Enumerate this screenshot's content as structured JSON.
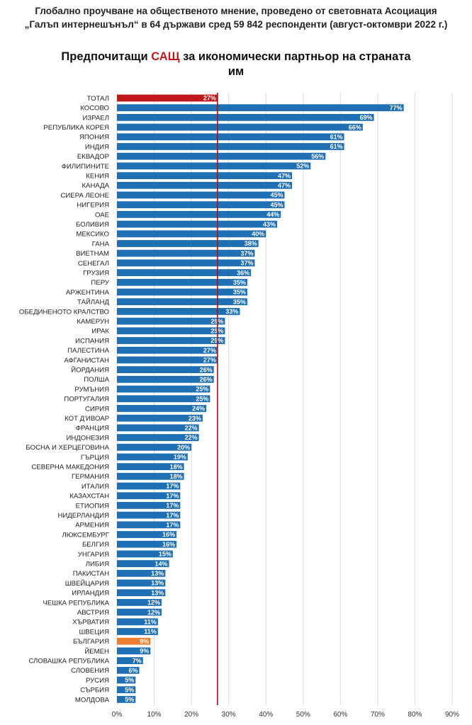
{
  "header": {
    "line1": "Глобално проучване на общественото мнение, проведено от световната Асоциация",
    "line2": "„Галъп интернешънъл“ в 64 държави сред 59 842 респонденти (август-октомври 2022 г.)"
  },
  "title": {
    "part1": "Предпочитащи ",
    "highlight": "САЩ",
    "part2": " за икономически партньор на страната",
    "line2": "им"
  },
  "colors": {
    "bar": "#1f6fb5",
    "total": "#c0181b",
    "highlight": "#ed7d31",
    "refline": "#a0141a",
    "grid": "#d9d9d9"
  },
  "chart_data": {
    "type": "bar",
    "orientation": "horizontal",
    "categories": [
      "ТОТАЛ",
      "КОСОВО",
      "ИЗРАЕЛ",
      "РЕПУБЛИКА КОРЕЯ",
      "ЯПОНИЯ",
      "ИНДИЯ",
      "ЕКВАДОР",
      "ФИЛИПИНИТЕ",
      "КЕНИЯ",
      "КАНАДА",
      "СИЕРА ЛЕОНЕ",
      "НИГЕРИЯ",
      "ОАЕ",
      "БОЛИВИЯ",
      "МЕКСИКО",
      "ГАНА",
      "ВИЕТНАМ",
      "СЕНЕГАЛ",
      "ГРУЗИЯ",
      "ПЕРУ",
      "АРЖЕНТИНА",
      "ТАЙЛАНД",
      "ОБЕДИНЕНОТО КРАЛСТВО",
      "КАМЕРУН",
      "ИРАК",
      "ИСПАНИЯ",
      "ПАЛЕСТИНА",
      "АФГАНИСТАН",
      "ЙОРДАНИЯ",
      "ПОЛША",
      "РУМЪНИЯ",
      "ПОРТУГАЛИЯ",
      "СИРИЯ",
      "КОТ Д'ИВОАР",
      "ФРАНЦИЯ",
      "ИНДОНЕЗИЯ",
      "БОСНА И ХЕРЦЕГОВИНА",
      "ГЪРЦИЯ",
      "СЕВЕРНА МАКЕДОНИЯ",
      "ГЕРМАНИЯ",
      "ИТАЛИЯ",
      "КАЗАХСТАН",
      "ЕТИОПИЯ",
      "НИДЕРЛАНДИЯ",
      "АРМЕНИЯ",
      "ЛЮКСЕМБУРГ",
      "БЕЛГИЯ",
      "УНГАРИЯ",
      "ЛИБИЯ",
      "ПАКИСТАН",
      "ШВЕЙЦАРИЯ",
      "ИРЛАНДИЯ",
      "ЧЕШКА РЕПУБЛИКА",
      "АВСТРИЯ",
      "ХЪРВАТИЯ",
      "ШВЕЦИЯ",
      "БЪЛГАРИЯ",
      "ЙЕМЕН",
      "СЛОВАШКА РЕПУБЛИКА",
      "СЛОВЕНИЯ",
      "РУСИЯ",
      "СЪРБИЯ",
      "МОЛДОВА"
    ],
    "values": [
      27,
      77,
      69,
      66,
      61,
      61,
      56,
      52,
      47,
      47,
      45,
      45,
      44,
      43,
      40,
      38,
      37,
      37,
      36,
      35,
      35,
      35,
      33,
      29,
      29,
      29,
      27,
      27,
      26,
      26,
      25,
      25,
      24,
      23,
      22,
      22,
      20,
      19,
      18,
      18,
      17,
      17,
      17,
      17,
      17,
      16,
      16,
      15,
      14,
      13,
      13,
      13,
      12,
      12,
      11,
      11,
      9,
      9,
      7,
      6,
      5,
      5,
      5
    ],
    "value_labels": [
      "27%",
      "77%",
      "69%",
      "66%",
      "61%",
      "61%",
      "56%",
      "52%",
      "47%",
      "47%",
      "45%",
      "45%",
      "44%",
      "43%",
      "40%",
      "38%",
      "37%",
      "37%",
      "36%",
      "35%",
      "35%",
      "35%",
      "33%",
      "29%",
      "29%",
      "29%",
      "27%",
      "27%",
      "26%",
      "26%",
      "25%",
      "25%",
      "24%",
      "23%",
      "22%",
      "22%",
      "20%",
      "19%",
      "18%",
      "18%",
      "17%",
      "17%",
      "17%",
      "17%",
      "17%",
      "16%",
      "16%",
      "15%",
      "14%",
      "13%",
      "13%",
      "13%",
      "12%",
      "12%",
      "11%",
      "11%",
      "9%",
      "9%",
      "7%",
      "6%",
      "5%",
      "5%",
      "5%"
    ],
    "highlight": {
      "total": "ТОТАЛ",
      "country": "БЪЛГАРИЯ"
    },
    "reference_line": 27,
    "xlim": [
      0,
      90
    ],
    "xticks": [
      0,
      10,
      20,
      30,
      40,
      50,
      60,
      70,
      80,
      90
    ],
    "xtick_labels": [
      "0%",
      "10%",
      "20%",
      "30%",
      "40%",
      "50%",
      "60%",
      "70%",
      "80%",
      "90%"
    ],
    "grid": true,
    "legend": false
  }
}
